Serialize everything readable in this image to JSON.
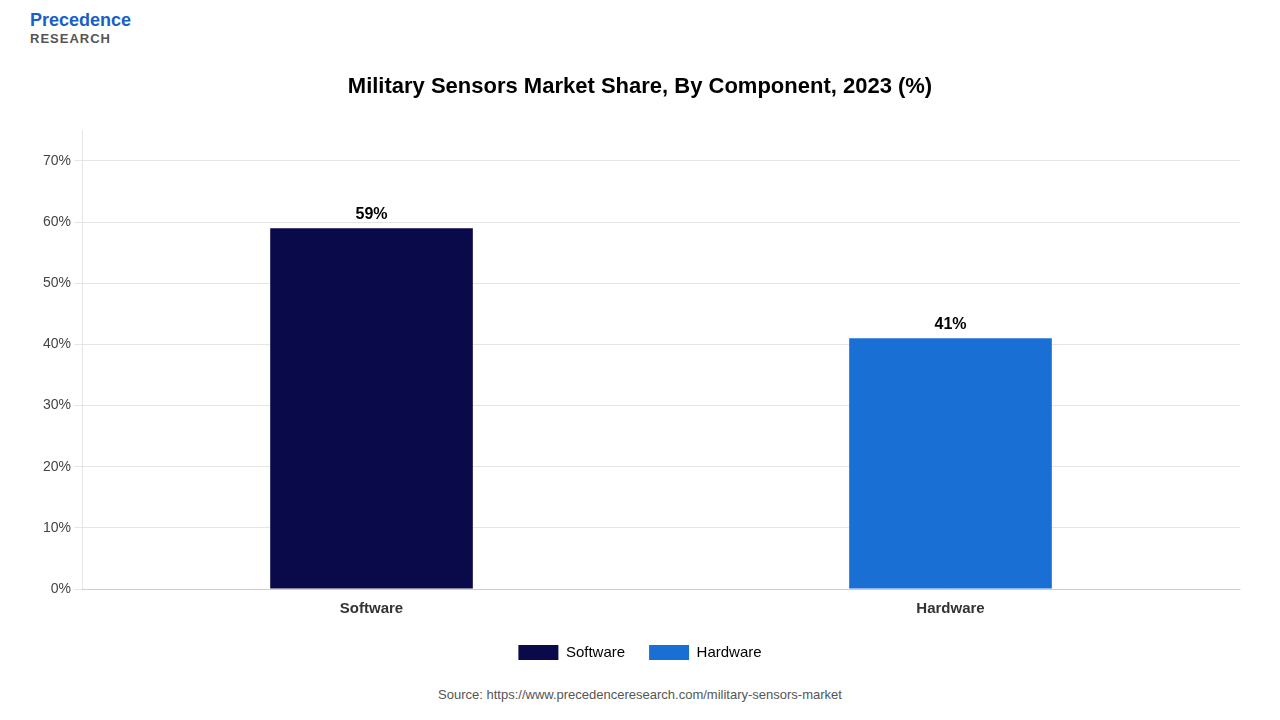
{
  "chart_data": {
    "type": "bar",
    "title": "Military Sensors Market Share, By Component, 2023 (%)",
    "categories": [
      "Software",
      "Hardware"
    ],
    "values": [
      59,
      41
    ],
    "value_labels": [
      "59%",
      "41%"
    ],
    "data_labels": true,
    "colors": [
      "#0a0a4a",
      "#1a6fd4"
    ],
    "ylim": [
      0,
      75
    ],
    "yticks": [
      {
        "value": 0,
        "label": "0%"
      },
      {
        "value": 10,
        "label": "10%"
      },
      {
        "value": 20,
        "label": "20%"
      },
      {
        "value": 30,
        "label": "30%"
      },
      {
        "value": 40,
        "label": "40%"
      },
      {
        "value": 50,
        "label": "50%"
      },
      {
        "value": 60,
        "label": "60%"
      },
      {
        "value": 70,
        "label": "70%"
      }
    ],
    "grid": true,
    "legend": "bottom",
    "annotations": [
      "Precedence",
      "RESEARCH",
      "Source: https://www.precedenceresearch.com/military-sensors-market"
    ]
  }
}
